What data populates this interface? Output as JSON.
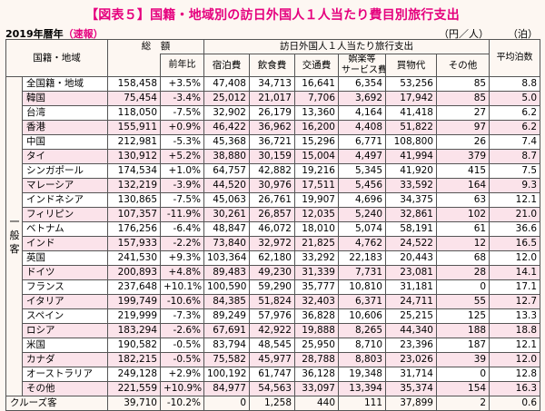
{
  "title": "【図表５】国籍・地域別の訪日外国人１人当たり費目別旅行支出",
  "year_label": "2019年暦年",
  "flash_label": "（速報）",
  "unit_yen": "（円／人）",
  "unit_nights": "（泊）",
  "headers": {
    "region": "国籍・地域",
    "total": "総　額",
    "yoy": "前年比",
    "group": "訪日外国人１人当たり旅行支出",
    "lodging": "宿泊費",
    "food": "飲食費",
    "transport": "交通費",
    "entertainment_1": "娯楽等",
    "entertainment_2": "サービス費",
    "shopping": "買物代",
    "other": "その他",
    "nights": "平均泊数"
  },
  "side_label": "一般客",
  "rows": [
    {
      "name": "全国籍・地域",
      "total": "158,458",
      "yoy": "+3.5%",
      "lodging": "47,408",
      "food": "34,713",
      "transport": "16,641",
      "ent": "6,354",
      "shop": "53,256",
      "other": "85",
      "nights": "8.8"
    },
    {
      "name": "韓国",
      "total": "75,454",
      "yoy": "-3.4%",
      "lodging": "25,012",
      "food": "21,017",
      "transport": "7,706",
      "ent": "3,692",
      "shop": "17,942",
      "other": "85",
      "nights": "5.0"
    },
    {
      "name": "台湾",
      "total": "118,050",
      "yoy": "-7.5%",
      "lodging": "32,902",
      "food": "26,179",
      "transport": "13,360",
      "ent": "4,164",
      "shop": "41,418",
      "other": "27",
      "nights": "6.2"
    },
    {
      "name": "香港",
      "total": "155,911",
      "yoy": "+0.9%",
      "lodging": "46,422",
      "food": "36,962",
      "transport": "16,200",
      "ent": "4,408",
      "shop": "51,822",
      "other": "97",
      "nights": "6.2"
    },
    {
      "name": "中国",
      "total": "212,981",
      "yoy": "-5.3%",
      "lodging": "45,368",
      "food": "36,721",
      "transport": "15,296",
      "ent": "6,771",
      "shop": "108,800",
      "other": "26",
      "nights": "7.4"
    },
    {
      "name": "タイ",
      "total": "130,912",
      "yoy": "+5.2%",
      "lodging": "38,880",
      "food": "30,159",
      "transport": "15,004",
      "ent": "4,497",
      "shop": "41,994",
      "other": "379",
      "nights": "8.7"
    },
    {
      "name": "シンガポール",
      "total": "174,534",
      "yoy": "+1.0%",
      "lodging": "64,757",
      "food": "42,882",
      "transport": "19,216",
      "ent": "5,345",
      "shop": "41,920",
      "other": "415",
      "nights": "7.5"
    },
    {
      "name": "マレーシア",
      "total": "132,219",
      "yoy": "-3.9%",
      "lodging": "44,520",
      "food": "30,976",
      "transport": "17,511",
      "ent": "5,456",
      "shop": "33,592",
      "other": "164",
      "nights": "9.3"
    },
    {
      "name": "インドネシア",
      "total": "130,865",
      "yoy": "-7.5%",
      "lodging": "45,063",
      "food": "26,761",
      "transport": "19,907",
      "ent": "4,696",
      "shop": "34,375",
      "other": "63",
      "nights": "12.1"
    },
    {
      "name": "フィリピン",
      "total": "107,357",
      "yoy": "-11.9%",
      "lodging": "30,261",
      "food": "26,857",
      "transport": "12,035",
      "ent": "5,240",
      "shop": "32,861",
      "other": "102",
      "nights": "21.0"
    },
    {
      "name": "ベトナム",
      "total": "176,256",
      "yoy": "-6.4%",
      "lodging": "48,847",
      "food": "46,072",
      "transport": "18,010",
      "ent": "5,074",
      "shop": "58,191",
      "other": "61",
      "nights": "36.6"
    },
    {
      "name": "インド",
      "total": "157,933",
      "yoy": "-2.2%",
      "lodging": "73,840",
      "food": "32,972",
      "transport": "21,825",
      "ent": "4,762",
      "shop": "24,522",
      "other": "12",
      "nights": "16.5"
    },
    {
      "name": "英国",
      "total": "241,530",
      "yoy": "+9.3%",
      "lodging": "103,364",
      "food": "62,180",
      "transport": "33,292",
      "ent": "22,183",
      "shop": "20,443",
      "other": "68",
      "nights": "12.0"
    },
    {
      "name": "ドイツ",
      "total": "200,893",
      "yoy": "+4.8%",
      "lodging": "89,483",
      "food": "49,230",
      "transport": "31,339",
      "ent": "7,731",
      "shop": "23,081",
      "other": "28",
      "nights": "14.1"
    },
    {
      "name": "フランス",
      "total": "237,648",
      "yoy": "+10.1%",
      "lodging": "100,590",
      "food": "59,290",
      "transport": "35,777",
      "ent": "10,810",
      "shop": "31,181",
      "other": "0",
      "nights": "17.1"
    },
    {
      "name": "イタリア",
      "total": "199,749",
      "yoy": "-10.6%",
      "lodging": "84,385",
      "food": "51,824",
      "transport": "32,403",
      "ent": "6,371",
      "shop": "24,711",
      "other": "55",
      "nights": "12.7"
    },
    {
      "name": "スペイン",
      "total": "219,999",
      "yoy": "-7.3%",
      "lodging": "89,249",
      "food": "57,976",
      "transport": "36,828",
      "ent": "10,606",
      "shop": "25,215",
      "other": "125",
      "nights": "13.3"
    },
    {
      "name": "ロシア",
      "total": "183,294",
      "yoy": "-2.6%",
      "lodging": "67,691",
      "food": "42,922",
      "transport": "19,888",
      "ent": "8,265",
      "shop": "44,340",
      "other": "188",
      "nights": "18.8"
    },
    {
      "name": "米国",
      "total": "190,582",
      "yoy": "-0.5%",
      "lodging": "83,794",
      "food": "48,545",
      "transport": "25,950",
      "ent": "8,710",
      "shop": "23,396",
      "other": "187",
      "nights": "12.1"
    },
    {
      "name": "カナダ",
      "total": "182,215",
      "yoy": "-0.5%",
      "lodging": "75,582",
      "food": "45,977",
      "transport": "28,788",
      "ent": "8,803",
      "shop": "23,026",
      "other": "39",
      "nights": "12.0"
    },
    {
      "name": "オーストラリア",
      "total": "249,128",
      "yoy": "+2.9%",
      "lodging": "100,192",
      "food": "61,747",
      "transport": "36,128",
      "ent": "19,348",
      "shop": "31,714",
      "other": "0",
      "nights": "12.8"
    },
    {
      "name": "その他",
      "total": "221,559",
      "yoy": "+10.9%",
      "lodging": "84,977",
      "food": "54,563",
      "transport": "33,097",
      "ent": "13,394",
      "shop": "35,374",
      "other": "154",
      "nights": "16.3"
    }
  ],
  "cruise": {
    "name": "クルーズ客",
    "total": "39,710",
    "yoy": "-10.2%",
    "lodging": "0",
    "food": "1,258",
    "transport": "440",
    "ent": "111",
    "shop": "37,899",
    "other": "2",
    "nights": "0.6"
  }
}
